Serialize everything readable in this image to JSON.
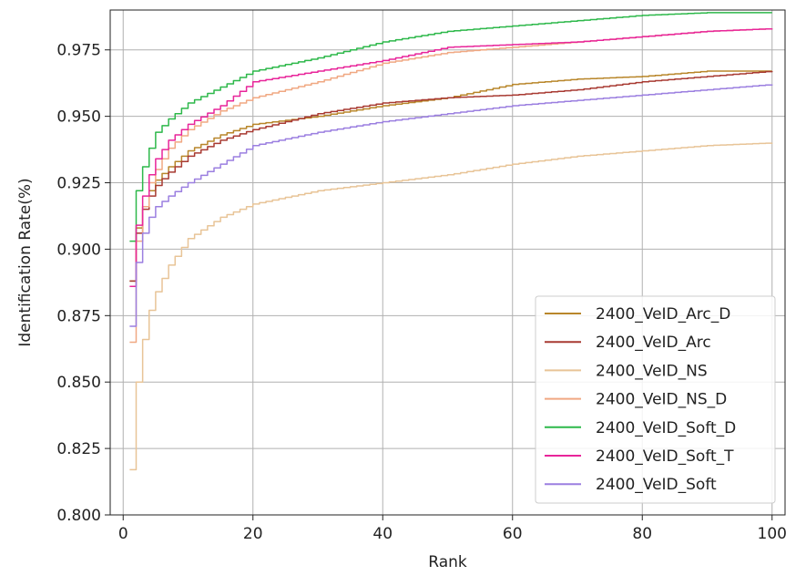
{
  "chart_data": {
    "type": "line",
    "title": "",
    "xlabel": "Rank",
    "ylabel": "Identification Rate(%)",
    "xlim": [
      -2,
      102
    ],
    "ylim": [
      0.8,
      0.99
    ],
    "xticks": [
      0,
      20,
      40,
      60,
      80,
      100
    ],
    "yticks": [
      0.8,
      0.825,
      0.85,
      0.875,
      0.9,
      0.925,
      0.95,
      0.975
    ],
    "ytick_labels": [
      "0.800",
      "0.825",
      "0.850",
      "0.875",
      "0.900",
      "0.925",
      "0.950",
      "0.975"
    ],
    "grid": true,
    "legend_position": "lower-right",
    "series": [
      {
        "name": "2400_VeID_Arc_D",
        "color": "#b8862a",
        "points": [
          [
            1,
            0.888
          ],
          [
            2,
            0.908
          ],
          [
            3,
            0.916
          ],
          [
            4,
            0.922
          ],
          [
            5,
            0.926
          ],
          [
            7,
            0.931
          ],
          [
            10,
            0.937
          ],
          [
            15,
            0.943
          ],
          [
            20,
            0.947
          ],
          [
            30,
            0.95
          ],
          [
            40,
            0.954
          ],
          [
            50,
            0.957
          ],
          [
            60,
            0.962
          ],
          [
            70,
            0.964
          ],
          [
            80,
            0.965
          ],
          [
            90,
            0.967
          ],
          [
            100,
            0.967
          ]
        ]
      },
      {
        "name": "2400_VeID_Arc",
        "color": "#a83a32",
        "points": [
          [
            1,
            0.888
          ],
          [
            2,
            0.906
          ],
          [
            3,
            0.915
          ],
          [
            4,
            0.92
          ],
          [
            5,
            0.924
          ],
          [
            7,
            0.929
          ],
          [
            10,
            0.935
          ],
          [
            15,
            0.941
          ],
          [
            20,
            0.945
          ],
          [
            30,
            0.951
          ],
          [
            40,
            0.955
          ],
          [
            50,
            0.957
          ],
          [
            60,
            0.958
          ],
          [
            70,
            0.96
          ],
          [
            80,
            0.963
          ],
          [
            90,
            0.965
          ],
          [
            100,
            0.967
          ]
        ]
      },
      {
        "name": "2400_VeID_NS",
        "color": "#e8c497",
        "points": [
          [
            1,
            0.817
          ],
          [
            2,
            0.85
          ],
          [
            3,
            0.866
          ],
          [
            4,
            0.877
          ],
          [
            5,
            0.884
          ],
          [
            7,
            0.894
          ],
          [
            10,
            0.904
          ],
          [
            15,
            0.912
          ],
          [
            20,
            0.917
          ],
          [
            30,
            0.922
          ],
          [
            40,
            0.925
          ],
          [
            50,
            0.928
          ],
          [
            60,
            0.932
          ],
          [
            70,
            0.935
          ],
          [
            80,
            0.937
          ],
          [
            90,
            0.939
          ],
          [
            100,
            0.94
          ]
        ]
      },
      {
        "name": "2400_VeID_NS_D",
        "color": "#f0a882",
        "points": [
          [
            1,
            0.865
          ],
          [
            2,
            0.903
          ],
          [
            3,
            0.916
          ],
          [
            4,
            0.925
          ],
          [
            5,
            0.93
          ],
          [
            7,
            0.938
          ],
          [
            10,
            0.945
          ],
          [
            15,
            0.952
          ],
          [
            20,
            0.957
          ],
          [
            30,
            0.963
          ],
          [
            40,
            0.97
          ],
          [
            50,
            0.974
          ],
          [
            60,
            0.976
          ],
          [
            70,
            0.978
          ],
          [
            80,
            0.98
          ],
          [
            90,
            0.982
          ],
          [
            100,
            0.983
          ]
        ]
      },
      {
        "name": "2400_VeID_Soft_D",
        "color": "#2db84a",
        "points": [
          [
            1,
            0.903
          ],
          [
            2,
            0.922
          ],
          [
            3,
            0.931
          ],
          [
            4,
            0.938
          ],
          [
            5,
            0.944
          ],
          [
            7,
            0.949
          ],
          [
            10,
            0.955
          ],
          [
            15,
            0.961
          ],
          [
            20,
            0.967
          ],
          [
            30,
            0.972
          ],
          [
            40,
            0.978
          ],
          [
            50,
            0.982
          ],
          [
            60,
            0.984
          ],
          [
            70,
            0.986
          ],
          [
            80,
            0.988
          ],
          [
            90,
            0.989
          ],
          [
            100,
            0.989
          ]
        ]
      },
      {
        "name": "2400_VeID_Soft_T",
        "color": "#e8259a",
        "points": [
          [
            1,
            0.886
          ],
          [
            2,
            0.909
          ],
          [
            3,
            0.92
          ],
          [
            4,
            0.928
          ],
          [
            5,
            0.934
          ],
          [
            7,
            0.941
          ],
          [
            10,
            0.947
          ],
          [
            15,
            0.954
          ],
          [
            20,
            0.963
          ],
          [
            30,
            0.967
          ],
          [
            40,
            0.971
          ],
          [
            50,
            0.976
          ],
          [
            60,
            0.977
          ],
          [
            70,
            0.978
          ],
          [
            80,
            0.98
          ],
          [
            90,
            0.982
          ],
          [
            100,
            0.983
          ]
        ]
      },
      {
        "name": "2400_VeID_Soft",
        "color": "#9b7fe0",
        "points": [
          [
            1,
            0.871
          ],
          [
            2,
            0.895
          ],
          [
            3,
            0.906
          ],
          [
            4,
            0.912
          ],
          [
            5,
            0.916
          ],
          [
            7,
            0.92
          ],
          [
            10,
            0.925
          ],
          [
            15,
            0.932
          ],
          [
            20,
            0.939
          ],
          [
            30,
            0.944
          ],
          [
            40,
            0.948
          ],
          [
            50,
            0.951
          ],
          [
            60,
            0.954
          ],
          [
            70,
            0.956
          ],
          [
            80,
            0.958
          ],
          [
            90,
            0.96
          ],
          [
            100,
            0.962
          ]
        ]
      }
    ]
  }
}
